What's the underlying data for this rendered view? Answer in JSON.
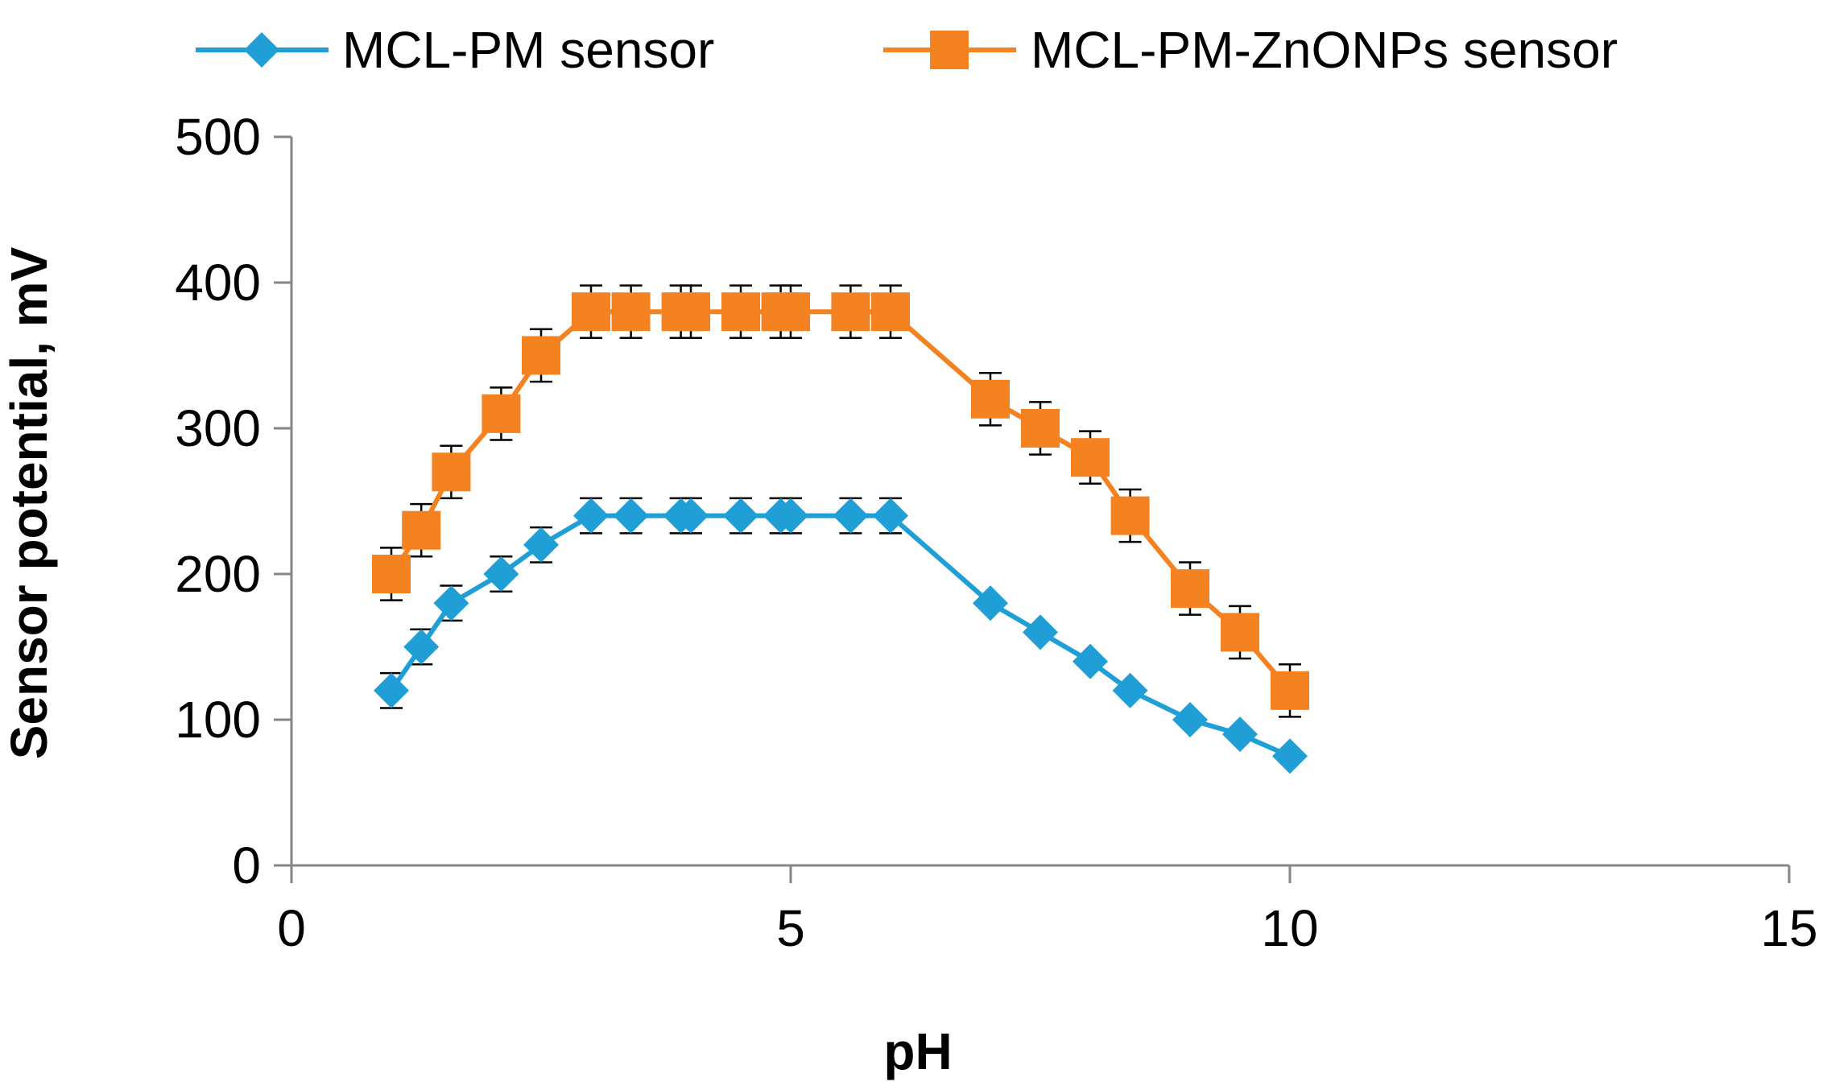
{
  "chart_data": {
    "type": "scatter",
    "xlabel": "pH",
    "ylabel": "Sensor potential, mV",
    "xlim": [
      0,
      15
    ],
    "ylim": [
      0,
      500
    ],
    "xticks": [
      0,
      5,
      10,
      15
    ],
    "yticks": [
      0,
      100,
      200,
      300,
      400,
      500
    ],
    "grid": false,
    "legend_position": "top",
    "series": [
      {
        "name": "MCL-PM sensor",
        "color": "#1f9fd6",
        "marker": "diamond",
        "error": 12,
        "error_until_x": 6,
        "x": [
          1,
          1.3,
          1.6,
          2.1,
          2.5,
          3,
          3.4,
          3.9,
          4,
          4.5,
          4.9,
          5,
          5.6,
          6,
          7,
          7.5,
          8,
          8.4,
          9,
          9.5,
          10
        ],
        "y": [
          120,
          150,
          180,
          200,
          220,
          240,
          240,
          240,
          240,
          240,
          240,
          240,
          240,
          240,
          180,
          160,
          140,
          120,
          100,
          90,
          75
        ]
      },
      {
        "name": "MCL-PM-ZnONPs sensor",
        "color": "#f58220",
        "marker": "square",
        "error": 18,
        "error_until_x": 100,
        "x": [
          1,
          1.3,
          1.6,
          2.1,
          2.5,
          3,
          3.4,
          3.9,
          4,
          4.5,
          4.9,
          5,
          5.6,
          6,
          7,
          7.5,
          8,
          8.4,
          9,
          9.5,
          10
        ],
        "y": [
          200,
          230,
          270,
          310,
          350,
          380,
          380,
          380,
          380,
          380,
          380,
          380,
          380,
          380,
          320,
          300,
          280,
          240,
          190,
          160,
          120
        ]
      }
    ]
  }
}
